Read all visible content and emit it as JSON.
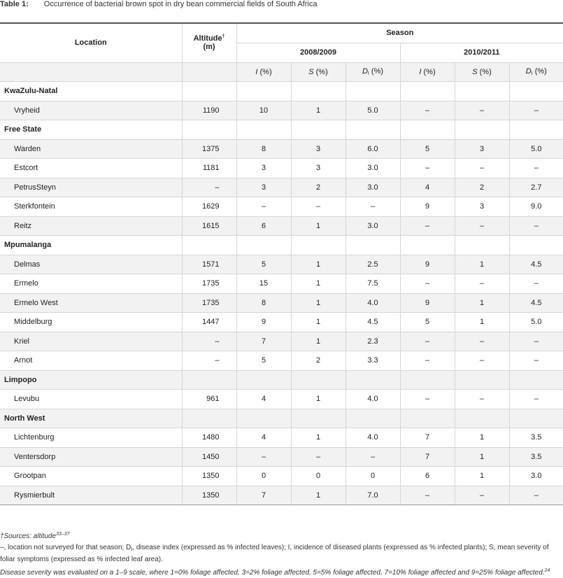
{
  "caption": {
    "label": "Table 1:",
    "text": "Occurrence of bacterial brown spot in dry bean commercial fields of South Africa"
  },
  "table": {
    "header": {
      "location": "Location",
      "altitude": {
        "text": "Altitude",
        "mark": "†",
        "unit": "(m)"
      },
      "season": "Season",
      "periods": [
        "2008/2009",
        "2010/2011"
      ],
      "measures": [
        {
          "symbol": "I",
          "unit": "(%)"
        },
        {
          "symbol": "S",
          "unit": "(%)"
        },
        {
          "symbol": "D",
          "subscript": "I",
          "unit": "(%)"
        }
      ]
    },
    "rows": [
      [
        "KwaZulu-Natal"
      ],
      [
        "Vryheid",
        "1190",
        "10",
        "1",
        "5.0",
        "–",
        "–",
        "–"
      ],
      [
        "Free State"
      ],
      [
        "Warden",
        "1375",
        "8",
        "3",
        "6.0",
        "5",
        "3",
        "5.0"
      ],
      [
        "Estcort",
        "1181",
        "3",
        "3",
        "3.0",
        "–",
        "–",
        "–"
      ],
      [
        "PetrusSteyn",
        "–",
        "3",
        "2",
        "3.0",
        "4",
        "2",
        "2.7"
      ],
      [
        "Sterkfontein",
        "1629",
        "–",
        "–",
        "–",
        "9",
        "3",
        "9.0"
      ],
      [
        "Reitz",
        "1615",
        "6",
        "1",
        "3.0",
        "–",
        "–",
        "–"
      ],
      [
        "Mpumalanga"
      ],
      [
        "Delmas",
        "1571",
        "5",
        "1",
        "2.5",
        "9",
        "1",
        "4.5"
      ],
      [
        "Ermelo",
        "1735",
        "15",
        "1",
        "7.5",
        "–",
        "–",
        "–"
      ],
      [
        "Ermelo West",
        "1735",
        "8",
        "1",
        "4.0",
        "9",
        "1",
        "4.5"
      ],
      [
        "Middelburg",
        "1447",
        "9",
        "1",
        "4.5",
        "5",
        "1",
        "5.0"
      ],
      [
        "Kriel",
        "–",
        "7",
        "1",
        "2.3",
        "–",
        "–",
        "–"
      ],
      [
        "Arnot",
        "–",
        "5",
        "2",
        "3.3",
        "–",
        "–",
        "–"
      ],
      [
        "Limpopo"
      ],
      [
        "Levubu",
        "961",
        "4",
        "1",
        "4.0",
        "–",
        "–",
        "–"
      ],
      [
        "North West"
      ],
      [
        "Lichtenburg",
        "1480",
        "4",
        "1",
        "4.0",
        "7",
        "1",
        "3.5"
      ],
      [
        "Ventersdorp",
        "1450",
        "–",
        "–",
        "–",
        "7",
        "1",
        "3.5"
      ],
      [
        "Grootpan",
        "1350",
        "0",
        "0",
        "0",
        "6",
        "1",
        "3.0"
      ],
      [
        "Rysmierbult",
        "1350",
        "7",
        "1",
        "7.0",
        "–",
        "–",
        "–"
      ]
    ]
  },
  "footnotes": [
    [
      "†Sources: altitude",
      {
        "sup": "33–37"
      }
    ],
    [
      "–, location not surveyed for that season; D",
      {
        "sub": "I"
      },
      ", disease index (expressed as % infected leaves); I, incidence of diseased plants (expressed as % infected plants); S, mean severity of foliar symptoms (expressed as % infected leaf area)."
    ],
    [
      "Disease severity was evaluated on a 1–9 scale, where 1=0% foliage affected, 3=2% foliage affected, 5=5% foliage affected, 7=10% foliage affected and 9=25% foliage affected.",
      {
        "sup": "24"
      }
    ]
  ]
}
